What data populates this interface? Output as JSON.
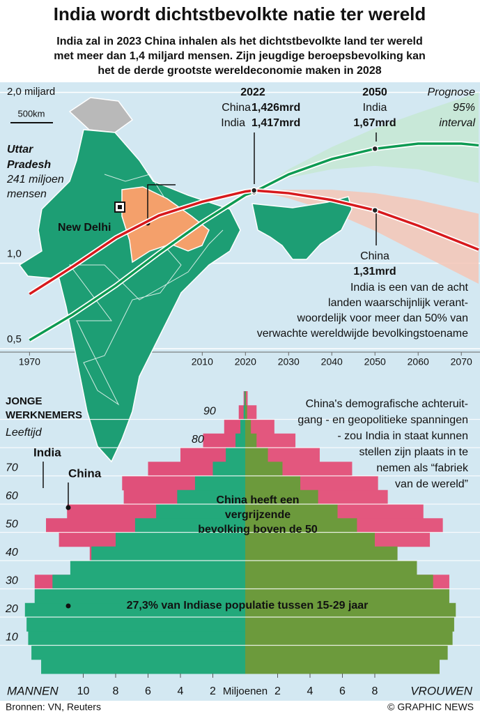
{
  "header": {
    "title": "India wordt dichtstbevolkte natie ter wereld",
    "subtitle_lines": [
      "India zal in 2023 China inhalen als het dichtstbevolkte land ter wereld",
      "met meer dan 1,4 miljard mensen. Zijn jeugdige beroepsbevolking kan",
      "het de derde grootste wereldeconomie maken in 2028"
    ]
  },
  "map": {
    "region_lines": [
      "Uttar",
      "Pradesh"
    ],
    "population_lines": [
      "241 miljoen",
      "mensen"
    ],
    "capital": "New Delhi",
    "scale": "500km"
  },
  "chart_data": [
    {
      "type": "line",
      "x": [
        1970,
        1980,
        1990,
        2000,
        2010,
        2020,
        2022,
        2030,
        2040,
        2050,
        2060,
        2070,
        2074
      ],
      "xlim": [
        1968,
        2074
      ],
      "xticks": [
        1970,
        2010,
        2020,
        2030,
        2040,
        2050,
        2060,
        2070
      ],
      "ylim": [
        0.48,
        2.01
      ],
      "yticks": [
        {
          "value": 0.5,
          "label": "0,5"
        },
        {
          "value": 1.0,
          "label": "1,0"
        },
        {
          "value": 2.0,
          "label": "2,0 miljard"
        }
      ],
      "grid": true,
      "series": [
        {
          "name": "India",
          "color": "#0d9a52",
          "values": [
            0.55,
            0.7,
            0.87,
            1.06,
            1.24,
            1.4,
            1.417,
            1.52,
            1.61,
            1.67,
            1.7,
            1.7,
            1.69
          ],
          "value_labels": [
            null,
            null,
            null,
            null,
            null,
            null,
            "1,417mrd",
            null,
            null,
            "1,67mrd",
            null,
            null,
            null
          ],
          "band": {
            "color": "#c5e7d3",
            "x": [
              2022,
              2030,
              2040,
              2050,
              2060,
              2074
            ],
            "lower": [
              1.417,
              1.5,
              1.55,
              1.57,
              1.55,
              1.47
            ],
            "upper": [
              1.417,
              1.55,
              1.68,
              1.79,
              1.88,
              2.0
            ]
          }
        },
        {
          "name": "China",
          "color": "#d7191c",
          "values": [
            0.82,
            0.98,
            1.15,
            1.28,
            1.36,
            1.42,
            1.426,
            1.41,
            1.37,
            1.31,
            1.22,
            1.12,
            1.08
          ],
          "value_labels": [
            null,
            null,
            null,
            null,
            null,
            null,
            "1,426mrd",
            null,
            null,
            "1,31mrd",
            null,
            null,
            null
          ],
          "band": {
            "color": "#f5c6b6",
            "x": [
              2022,
              2030,
              2040,
              2050,
              2060,
              2074
            ],
            "lower": [
              1.426,
              1.38,
              1.3,
              1.19,
              1.06,
              0.88
            ],
            "upper": [
              1.426,
              1.43,
              1.43,
              1.41,
              1.37,
              1.29
            ]
          }
        }
      ],
      "interval_lines": [
        "Prognose",
        "95%",
        "interval"
      ],
      "note_lines": [
        "India is een van de acht",
        "landen waarschijnlijk verant-",
        "woordelijk voor meer dan 50% van",
        "verwachte wereldwijde bevolkingstoename"
      ]
    },
    {
      "type": "pyramid",
      "title_lines": [
        "JONGE",
        "WERKNEMERS"
      ],
      "ylabel": "Leeftijd",
      "bins": [
        0,
        5,
        10,
        15,
        20,
        25,
        30,
        35,
        40,
        45,
        50,
        55,
        60,
        65,
        70,
        75,
        80,
        85,
        90,
        95,
        100
      ],
      "ylim": [
        0,
        100
      ],
      "yticks": [
        10,
        20,
        30,
        40,
        50,
        60,
        70,
        80,
        90
      ],
      "xlim": [
        0,
        14
      ],
      "xticks_left": [
        10,
        8,
        6,
        4,
        2
      ],
      "xticks_right": [
        2,
        4,
        6,
        8
      ],
      "xlabel": "Miljoenen",
      "left_label": "MANNEN",
      "right_label": "VROUWEN",
      "series": [
        {
          "name": "China",
          "male_color": "#e0507a",
          "female_color": "#e3577e",
          "male": [
            7.5,
            8.5,
            8.8,
            8.0,
            7.5,
            9.0,
            13.0,
            10.3,
            9.6,
            11.5,
            12.3,
            11.0,
            7.5,
            7.6,
            6.0,
            4.0,
            2.6,
            1.3,
            0.4,
            0.1
          ],
          "female": [
            6.6,
            7.6,
            8.0,
            7.3,
            7.0,
            8.6,
            12.6,
            10.4,
            9.4,
            11.4,
            12.2,
            11.0,
            8.8,
            8.2,
            6.6,
            4.6,
            3.1,
            1.8,
            0.7,
            0.15
          ]
        },
        {
          "name": "India",
          "male_color": "#23a97b",
          "female_color": "#6c9a3c",
          "male": [
            12.6,
            13.2,
            13.4,
            13.5,
            13.6,
            13.0,
            11.9,
            10.8,
            9.5,
            8.0,
            6.8,
            5.5,
            4.2,
            3.1,
            2.0,
            1.2,
            0.6,
            0.3,
            0.1,
            0.05
          ],
          "female": [
            12.0,
            12.5,
            12.8,
            12.9,
            13.0,
            12.6,
            11.6,
            10.6,
            9.4,
            8.0,
            6.9,
            5.7,
            4.5,
            3.4,
            2.3,
            1.4,
            0.7,
            0.35,
            0.12,
            0.05
          ]
        }
      ],
      "note_lines": [
        "China's demografische achteruit-",
        "gang - en geopolitieke spanningen",
        "- zou India in staat kunnen",
        "stellen zijn plaats in te",
        "nemen als “fabriek",
        "van de wereld”"
      ],
      "aging_lines": [
        "China heeft een",
        "vergrijzende",
        "bevolking boven de 50"
      ],
      "youth_note": "27,3% van Indiase populatie tussen 15-29 jaar"
    }
  ],
  "footer": {
    "source": "Bronnen: VN, Reuters",
    "credit": "© GRAPHIC NEWS"
  }
}
